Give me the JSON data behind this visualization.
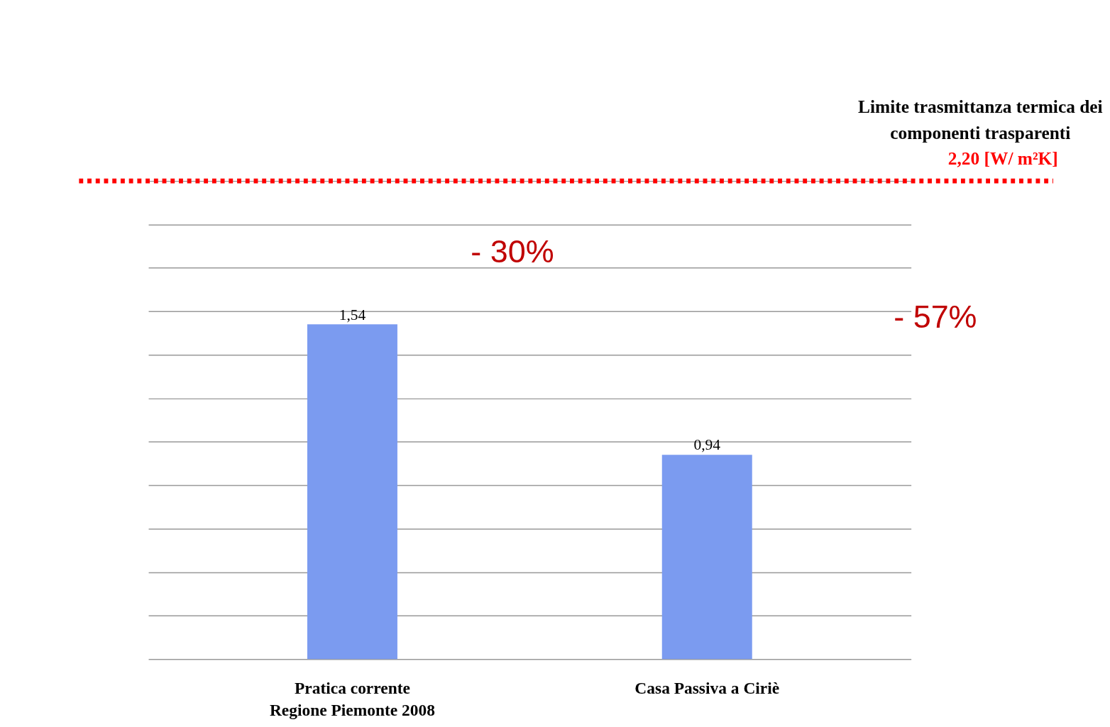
{
  "chart_data": {
    "type": "bar",
    "categories": [
      "Pratica corrente\nRegione Piemonte 2008",
      "Casa Passiva a Ciriè"
    ],
    "values": [
      1.54,
      0.94
    ],
    "color": "#7b9bf0",
    "value_labels": [
      "1,54",
      "0,94"
    ],
    "ylim": [
      0,
      2.2
    ],
    "grid": "y",
    "tick_labels": "x",
    "ref_lines": [
      {
        "axis": "y",
        "value": 2.2,
        "label": "Limite trasmittanza termica dei\ncomponenti trasparenti\n2,20  [W/ m²K]",
        "color": "#ff0000",
        "line_style": "dotted"
      }
    ],
    "annotations": [
      "- 30%",
      "- 57%"
    ]
  }
}
